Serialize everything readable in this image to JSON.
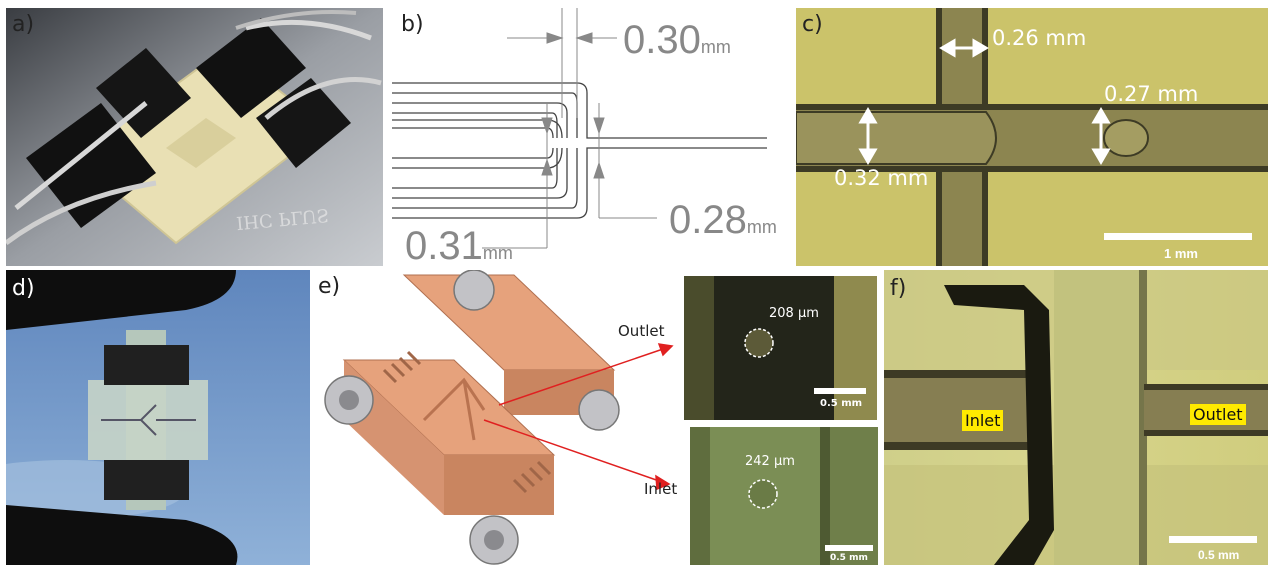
{
  "panels": {
    "a": {
      "label": "a)",
      "chip_text": "IHC PLUS"
    },
    "b": {
      "label": "b)",
      "dim_top": {
        "value": "0.30",
        "unit": "mm"
      },
      "dim_right": {
        "value": "0.28",
        "unit": "mm"
      },
      "dim_left": {
        "value": "0.31",
        "unit": "mm"
      }
    },
    "c": {
      "label": "c)",
      "m1": "0.26 mm",
      "m2": "0.27 mm",
      "m3": "0.32 mm",
      "scale": "1 mm"
    },
    "d": {
      "label": "d)"
    },
    "e": {
      "label": "e)",
      "outlet_label": "Outlet",
      "inlet_label": "Inlet",
      "outlet_measure": "208 µm",
      "inlet_measure": "242 µm",
      "scale_outlet": "0.5 mm",
      "scale_inlet": "0.5 mm"
    },
    "f": {
      "label": "f)",
      "inlet": "Inlet",
      "outlet": "Outlet",
      "scale": "0.5 mm"
    }
  },
  "colors": {
    "micro_bg": "#c9c064",
    "micro_dark": "#3b3a22",
    "copper": "#d4916c",
    "arrow_red": "#e02020",
    "highlight": "#ffea00"
  }
}
